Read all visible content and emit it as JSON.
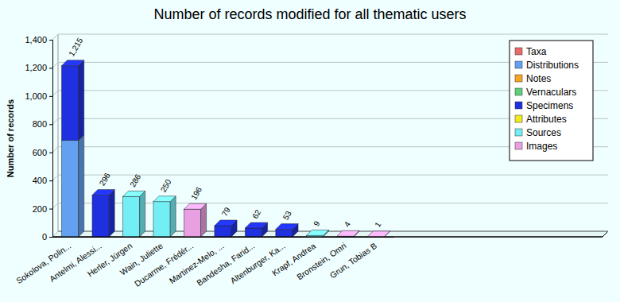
{
  "chart_data": {
    "type": "bar",
    "title": "Number of records modified for all thematic users",
    "y_label": "Number of records",
    "categories": [
      "Sokolova, Polin...",
      "Antelmi, Alessi...",
      "Herler, Jürgen",
      "Wain, Juliette",
      "Ducarme, Frédér...",
      "Martinez-Melo, ...",
      "Bandesha, Farid...",
      "Altenburger, Ka...",
      "Krapf, Andrea",
      "Bronstein, Omri",
      "Grun, Tobias B"
    ],
    "series": [
      {
        "name": "Taxa",
        "color": "#e86a6a",
        "values": [
          0,
          0,
          0,
          0,
          0,
          0,
          0,
          0,
          0,
          0,
          0
        ]
      },
      {
        "name": "Distributions",
        "color": "#64a0f0",
        "values": [
          685,
          0,
          0,
          0,
          0,
          0,
          0,
          0,
          0,
          0,
          0
        ]
      },
      {
        "name": "Notes",
        "color": "#f5a623",
        "values": [
          0,
          0,
          0,
          0,
          0,
          0,
          0,
          0,
          0,
          0,
          0
        ]
      },
      {
        "name": "Vernaculars",
        "color": "#5fd07a",
        "values": [
          0,
          0,
          0,
          0,
          0,
          0,
          0,
          0,
          0,
          0,
          0
        ]
      },
      {
        "name": "Specimens",
        "color": "#1f30e0",
        "values": [
          530,
          296,
          0,
          0,
          0,
          79,
          62,
          53,
          0,
          0,
          0
        ]
      },
      {
        "name": "Attributes",
        "color": "#f0ea20",
        "values": [
          0,
          0,
          0,
          0,
          0,
          0,
          0,
          0,
          0,
          0,
          0
        ]
      },
      {
        "name": "Sources",
        "color": "#74eef5",
        "values": [
          0,
          0,
          286,
          250,
          0,
          0,
          0,
          0,
          9,
          0,
          0
        ]
      },
      {
        "name": "Images",
        "color": "#e8a0e2",
        "values": [
          0,
          0,
          0,
          0,
          196,
          0,
          0,
          0,
          0,
          4,
          1
        ]
      }
    ],
    "totals": [
      1215,
      296,
      286,
      250,
      196,
      79,
      62,
      53,
      9,
      4,
      1
    ],
    "total_labels": [
      "1,215",
      "296",
      "286",
      "250",
      "196",
      "79",
      "62",
      "53",
      "9",
      "4",
      "1"
    ],
    "ylim": [
      0,
      1400
    ],
    "yticks": [
      0,
      200,
      400,
      600,
      800,
      {
        "value": 1000,
        "label": "1,000"
      },
      {
        "value": 1200,
        "label": "1,200"
      },
      {
        "value": 1400,
        "label": "1,400"
      }
    ],
    "stacked": true,
    "grid": true,
    "legend": "top-right"
  }
}
